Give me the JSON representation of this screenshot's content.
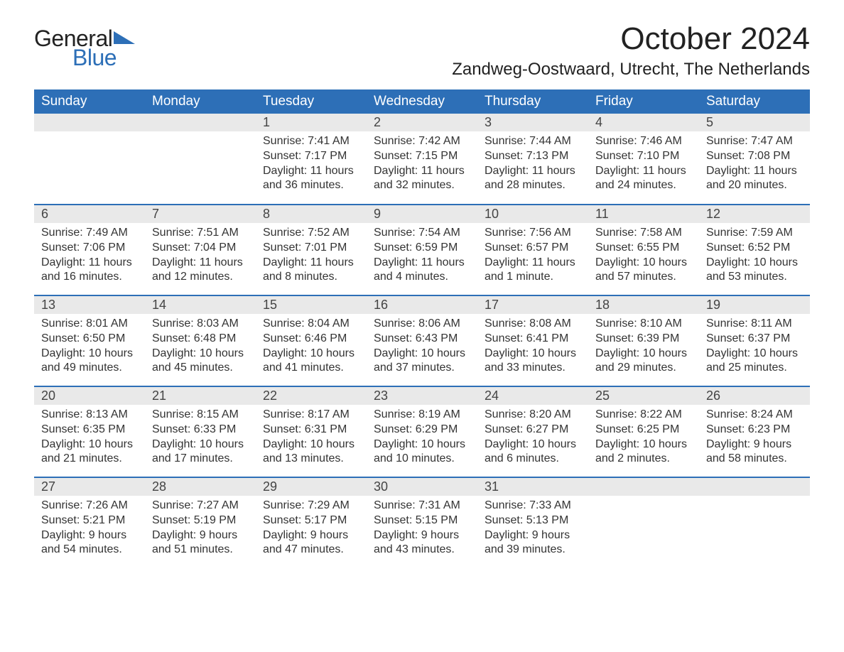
{
  "logo": {
    "text_general": "General",
    "text_blue": "Blue",
    "accent_color": "#2d6fb7"
  },
  "title": "October 2024",
  "location": "Zandweg-Oostwaard, Utrecht, The Netherlands",
  "colors": {
    "header_bg": "#2d6fb7",
    "header_text": "#ffffff",
    "daynum_bg": "#e9e9e9",
    "row_divider": "#2d6fb7",
    "body_text": "#333333",
    "page_bg": "#ffffff"
  },
  "fonts": {
    "family": "Arial",
    "title_size_pt": 33,
    "location_size_pt": 18,
    "dayheader_size_pt": 14,
    "daynum_size_pt": 14,
    "body_size_pt": 12
  },
  "day_headers": [
    "Sunday",
    "Monday",
    "Tuesday",
    "Wednesday",
    "Thursday",
    "Friday",
    "Saturday"
  ],
  "weeks": [
    [
      null,
      null,
      {
        "n": "1",
        "sunrise": "7:41 AM",
        "sunset": "7:17 PM",
        "daylight": "11 hours and 36 minutes."
      },
      {
        "n": "2",
        "sunrise": "7:42 AM",
        "sunset": "7:15 PM",
        "daylight": "11 hours and 32 minutes."
      },
      {
        "n": "3",
        "sunrise": "7:44 AM",
        "sunset": "7:13 PM",
        "daylight": "11 hours and 28 minutes."
      },
      {
        "n": "4",
        "sunrise": "7:46 AM",
        "sunset": "7:10 PM",
        "daylight": "11 hours and 24 minutes."
      },
      {
        "n": "5",
        "sunrise": "7:47 AM",
        "sunset": "7:08 PM",
        "daylight": "11 hours and 20 minutes."
      }
    ],
    [
      {
        "n": "6",
        "sunrise": "7:49 AM",
        "sunset": "7:06 PM",
        "daylight": "11 hours and 16 minutes."
      },
      {
        "n": "7",
        "sunrise": "7:51 AM",
        "sunset": "7:04 PM",
        "daylight": "11 hours and 12 minutes."
      },
      {
        "n": "8",
        "sunrise": "7:52 AM",
        "sunset": "7:01 PM",
        "daylight": "11 hours and 8 minutes."
      },
      {
        "n": "9",
        "sunrise": "7:54 AM",
        "sunset": "6:59 PM",
        "daylight": "11 hours and 4 minutes."
      },
      {
        "n": "10",
        "sunrise": "7:56 AM",
        "sunset": "6:57 PM",
        "daylight": "11 hours and 1 minute."
      },
      {
        "n": "11",
        "sunrise": "7:58 AM",
        "sunset": "6:55 PM",
        "daylight": "10 hours and 57 minutes."
      },
      {
        "n": "12",
        "sunrise": "7:59 AM",
        "sunset": "6:52 PM",
        "daylight": "10 hours and 53 minutes."
      }
    ],
    [
      {
        "n": "13",
        "sunrise": "8:01 AM",
        "sunset": "6:50 PM",
        "daylight": "10 hours and 49 minutes."
      },
      {
        "n": "14",
        "sunrise": "8:03 AM",
        "sunset": "6:48 PM",
        "daylight": "10 hours and 45 minutes."
      },
      {
        "n": "15",
        "sunrise": "8:04 AM",
        "sunset": "6:46 PM",
        "daylight": "10 hours and 41 minutes."
      },
      {
        "n": "16",
        "sunrise": "8:06 AM",
        "sunset": "6:43 PM",
        "daylight": "10 hours and 37 minutes."
      },
      {
        "n": "17",
        "sunrise": "8:08 AM",
        "sunset": "6:41 PM",
        "daylight": "10 hours and 33 minutes."
      },
      {
        "n": "18",
        "sunrise": "8:10 AM",
        "sunset": "6:39 PM",
        "daylight": "10 hours and 29 minutes."
      },
      {
        "n": "19",
        "sunrise": "8:11 AM",
        "sunset": "6:37 PM",
        "daylight": "10 hours and 25 minutes."
      }
    ],
    [
      {
        "n": "20",
        "sunrise": "8:13 AM",
        "sunset": "6:35 PM",
        "daylight": "10 hours and 21 minutes."
      },
      {
        "n": "21",
        "sunrise": "8:15 AM",
        "sunset": "6:33 PM",
        "daylight": "10 hours and 17 minutes."
      },
      {
        "n": "22",
        "sunrise": "8:17 AM",
        "sunset": "6:31 PM",
        "daylight": "10 hours and 13 minutes."
      },
      {
        "n": "23",
        "sunrise": "8:19 AM",
        "sunset": "6:29 PM",
        "daylight": "10 hours and 10 minutes."
      },
      {
        "n": "24",
        "sunrise": "8:20 AM",
        "sunset": "6:27 PM",
        "daylight": "10 hours and 6 minutes."
      },
      {
        "n": "25",
        "sunrise": "8:22 AM",
        "sunset": "6:25 PM",
        "daylight": "10 hours and 2 minutes."
      },
      {
        "n": "26",
        "sunrise": "8:24 AM",
        "sunset": "6:23 PM",
        "daylight": "9 hours and 58 minutes."
      }
    ],
    [
      {
        "n": "27",
        "sunrise": "7:26 AM",
        "sunset": "5:21 PM",
        "daylight": "9 hours and 54 minutes."
      },
      {
        "n": "28",
        "sunrise": "7:27 AM",
        "sunset": "5:19 PM",
        "daylight": "9 hours and 51 minutes."
      },
      {
        "n": "29",
        "sunrise": "7:29 AM",
        "sunset": "5:17 PM",
        "daylight": "9 hours and 47 minutes."
      },
      {
        "n": "30",
        "sunrise": "7:31 AM",
        "sunset": "5:15 PM",
        "daylight": "9 hours and 43 minutes."
      },
      {
        "n": "31",
        "sunrise": "7:33 AM",
        "sunset": "5:13 PM",
        "daylight": "9 hours and 39 minutes."
      },
      null,
      null
    ]
  ],
  "labels": {
    "sunrise": "Sunrise:",
    "sunset": "Sunset:",
    "daylight": "Daylight:"
  }
}
